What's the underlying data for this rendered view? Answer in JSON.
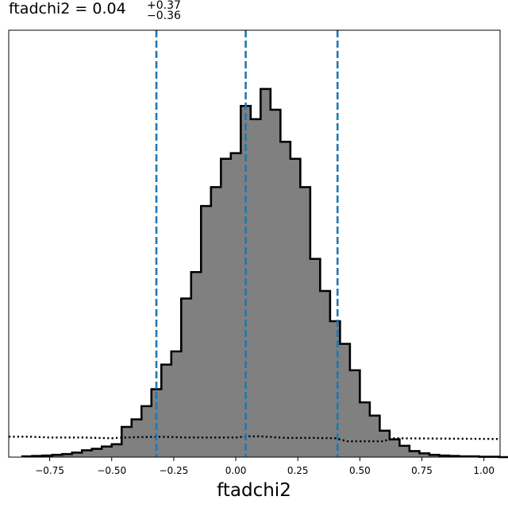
{
  "chart_data": {
    "type": "histogram",
    "title": {
      "param": "ftadchi2",
      "value": "0.04",
      "upper": "+0.37",
      "lower": "−0.36",
      "equals": " = "
    },
    "xlabel": "ftadchi2",
    "ylabel": "",
    "xlim": [
      -0.915,
      1.065
    ],
    "ylim": [
      0,
      1.0
    ],
    "xticks": [
      {
        "value": -0.75,
        "label": "−0.75"
      },
      {
        "value": -0.5,
        "label": "−0.50"
      },
      {
        "value": -0.25,
        "label": "−0.25"
      },
      {
        "value": 0.0,
        "label": "0.00"
      },
      {
        "value": 0.25,
        "label": "0.25"
      },
      {
        "value": 0.5,
        "label": "0.50"
      },
      {
        "value": 0.75,
        "label": "0.75"
      },
      {
        "value": 1.0,
        "label": "1.00"
      }
    ],
    "bin_start": -0.86,
    "bin_width": 0.04,
    "counts": [
      0.002,
      0.003,
      0.004,
      0.006,
      0.008,
      0.012,
      0.018,
      0.022,
      0.028,
      0.034,
      0.08,
      0.1,
      0.135,
      0.18,
      0.245,
      0.28,
      0.42,
      0.49,
      0.665,
      0.715,
      0.79,
      0.805,
      0.93,
      0.895,
      0.975,
      0.92,
      0.835,
      0.79,
      0.715,
      0.525,
      0.44,
      0.36,
      0.3,
      0.23,
      0.145,
      0.11,
      0.07,
      0.047,
      0.03,
      0.016,
      0.01,
      0.006,
      0.004,
      0.003,
      0.002,
      0.002,
      0.001,
      0.001,
      0.0
    ],
    "quantile_lines": [
      -0.32,
      0.04,
      0.41
    ],
    "prior_curve": {
      "x": [
        -0.915,
        -0.83,
        -0.75,
        -0.62,
        -0.5,
        -0.45,
        -0.3,
        -0.2,
        -0.1,
        0.0,
        0.05,
        0.1,
        0.2,
        0.3,
        0.4,
        0.45,
        0.6,
        0.62,
        1.065
      ],
      "y": [
        0.054,
        0.054,
        0.052,
        0.052,
        0.05,
        0.052,
        0.054,
        0.052,
        0.052,
        0.052,
        0.055,
        0.055,
        0.051,
        0.051,
        0.05,
        0.042,
        0.042,
        0.05,
        0.048
      ]
    },
    "colors": {
      "fill": "#808080",
      "edge": "#000000",
      "quantile": "#1f77b4",
      "prior": "#000000"
    }
  }
}
